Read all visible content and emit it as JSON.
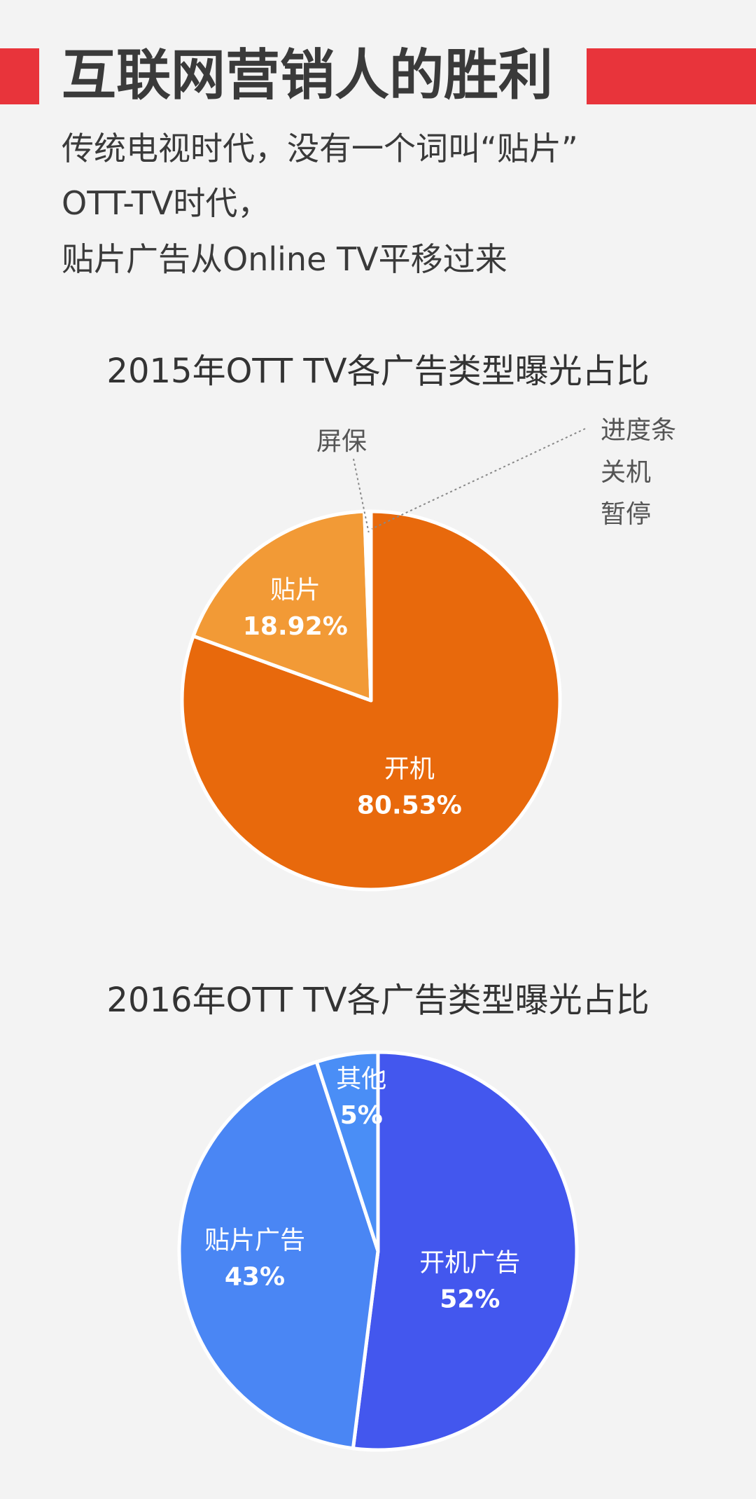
{
  "header": {
    "title": "互联网营销人的胜利",
    "lines": [
      "传统电视时代，没有一个词叫“贴片”",
      "OTT-TV时代，",
      "贴片广告从Online TV平移过来"
    ]
  },
  "chart_data": [
    {
      "type": "pie",
      "title": "2015年OTT TV各广告类型曝光占比",
      "slices": [
        {
          "name": "开机",
          "label": "80.53%",
          "value": 80.53,
          "color": "#e8690c"
        },
        {
          "name": "贴片",
          "label": "18.92%",
          "value": 18.92,
          "color": "#f29a36"
        },
        {
          "name": "屏保",
          "value": 0.3,
          "color": "#f6b65a"
        },
        {
          "name": "进度条\n关机\n暂停",
          "value": 0.25,
          "color": "#f6b65a"
        }
      ],
      "external_labels": [
        "屏保",
        "进度条",
        "关机",
        "暂停"
      ]
    },
    {
      "type": "pie",
      "title": "2016年OTT TV各广告类型曝光占比",
      "slices": [
        {
          "name": "开机广告",
          "label": "52%",
          "value": 52,
          "color": "#4357ee"
        },
        {
          "name": "贴片广告",
          "label": "43%",
          "value": 43,
          "color": "#4a86f4"
        },
        {
          "name": "其他",
          "label": "5%",
          "value": 5,
          "color": "#4a8ef6"
        }
      ]
    }
  ]
}
